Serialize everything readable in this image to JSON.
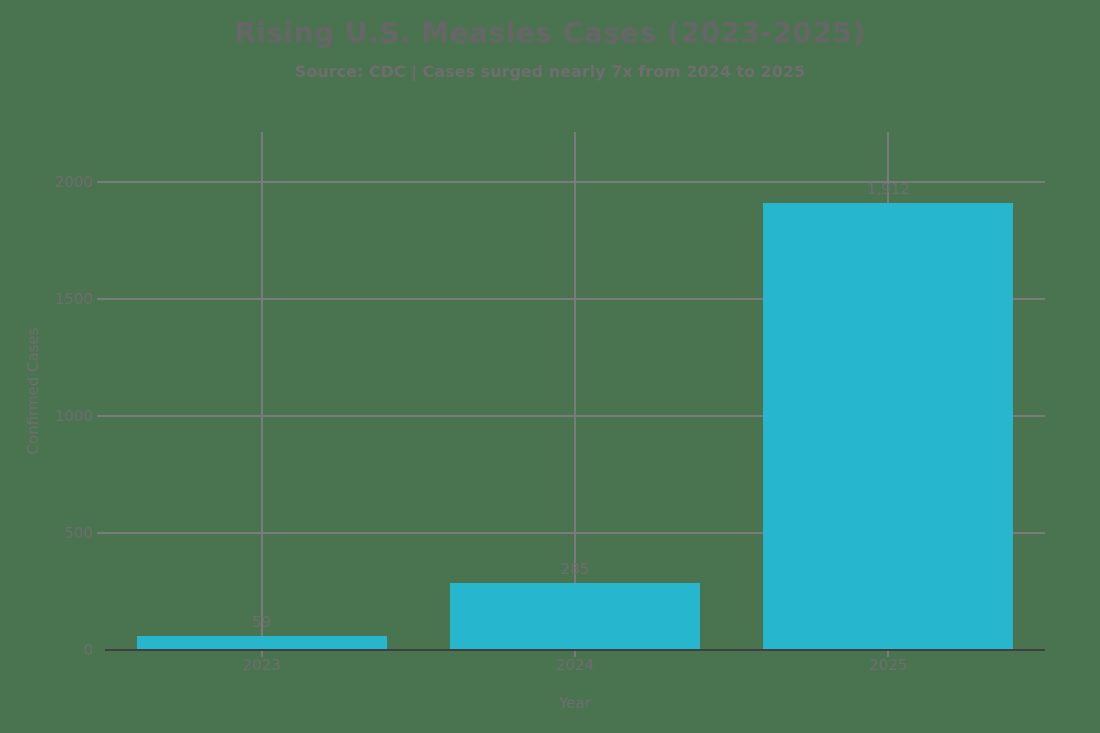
{
  "chart_data": {
    "type": "bar",
    "title": "Rising U.S. Measles Cases (2023-2025)",
    "subtitle": "Source: CDC | Cases surged nearly 7x from 2024 to 2025",
    "categories": [
      "2023",
      "2024",
      "2025"
    ],
    "values": [
      59,
      285,
      1912
    ],
    "value_labels": [
      "59",
      "285",
      "1,912"
    ],
    "xlabel": "Year",
    "ylabel": "Confirmed Cases",
    "yticks": [
      0,
      500,
      1000,
      1500,
      2000
    ],
    "ytick_labels": [
      "0",
      "500",
      "1000",
      "1500",
      "2000"
    ],
    "ylim": [
      0,
      2214
    ],
    "grid": true,
    "legend": "none",
    "colors": {
      "background": "#4a7350",
      "bar": "#26b6cd",
      "gridline": "#7b7b7b",
      "axis_line": "#3f3f3f",
      "text": "#6e6e6e",
      "title": "#666666"
    }
  }
}
